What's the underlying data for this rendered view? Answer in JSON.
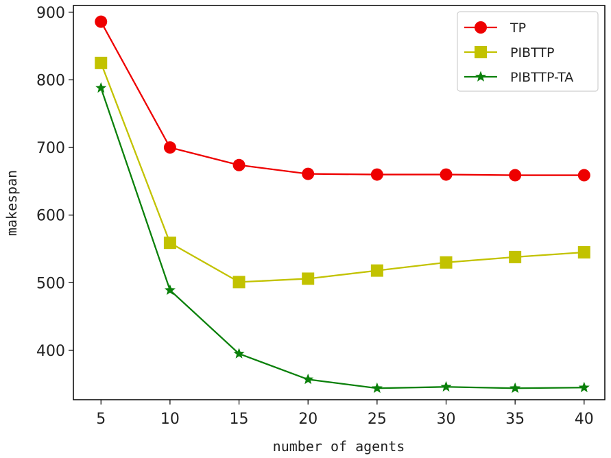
{
  "chart_data": {
    "type": "line",
    "title": "",
    "xlabel": "number of agents",
    "ylabel": "makespan",
    "x": [
      5,
      10,
      15,
      20,
      25,
      30,
      35,
      40
    ],
    "xlim": [
      3,
      41.5
    ],
    "ylim": [
      327,
      910
    ],
    "xticks": [
      5,
      10,
      15,
      20,
      25,
      30,
      35,
      40
    ],
    "yticks": [
      400,
      500,
      600,
      700,
      800,
      900
    ],
    "legend_position": "top-right",
    "series": [
      {
        "name": "TP",
        "color": "#ee0000",
        "marker": "circle",
        "values": [
          886,
          700,
          674,
          661,
          660,
          660,
          659,
          659
        ]
      },
      {
        "name": "PIBTTP",
        "color": "#c2c200",
        "marker": "square",
        "values": [
          825,
          559,
          501,
          506,
          518,
          530,
          538,
          545
        ]
      },
      {
        "name": "PIBTTP-TA",
        "color": "#0a800a",
        "marker": "star",
        "values": [
          788,
          489,
          395,
          357,
          344,
          346,
          344,
          345
        ]
      }
    ]
  }
}
